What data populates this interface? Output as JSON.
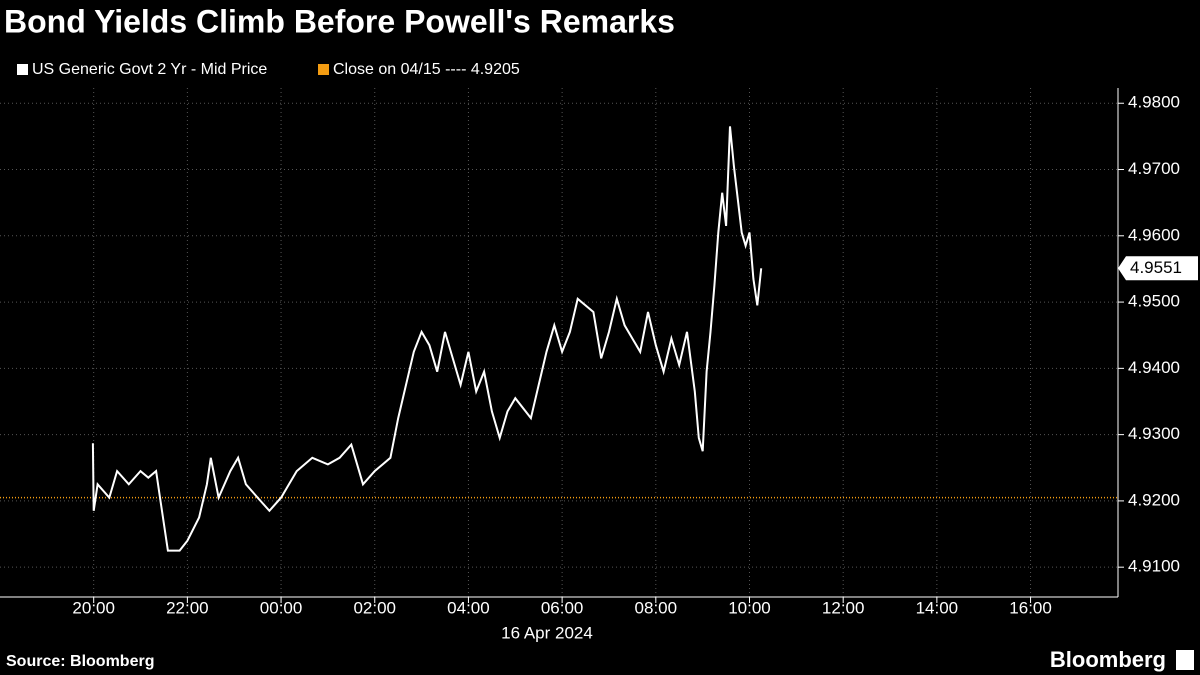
{
  "chart_data": {
    "type": "line",
    "title": "Bond Yields Climb Before Powell's Remarks",
    "series": [
      {
        "name": "US Generic Govt 2 Yr - Mid Price",
        "color": "#ffffff",
        "x": [
          "19:59",
          "20:00",
          "20:05",
          "20:20",
          "20:30",
          "20:45",
          "21:00",
          "21:10",
          "21:20",
          "21:25",
          "21:35",
          "21:50",
          "22:00",
          "22:15",
          "22:25",
          "22:30",
          "22:40",
          "22:55",
          "23:05",
          "23:15",
          "23:30",
          "23:45",
          "00:00",
          "00:20",
          "00:40",
          "01:00",
          "01:15",
          "01:30",
          "01:45",
          "02:00",
          "02:20",
          "02:30",
          "02:40",
          "02:50",
          "03:00",
          "03:10",
          "03:20",
          "03:30",
          "03:40",
          "03:50",
          "04:00",
          "04:10",
          "04:20",
          "04:30",
          "04:40",
          "04:50",
          "05:00",
          "05:20",
          "05:30",
          "05:40",
          "05:50",
          "06:00",
          "06:10",
          "06:20",
          "06:40",
          "06:50",
          "07:00",
          "07:10",
          "07:20",
          "07:40",
          "07:50",
          "08:00",
          "08:10",
          "08:20",
          "08:30",
          "08:40",
          "08:50",
          "08:55",
          "09:00",
          "09:05",
          "09:10",
          "09:15",
          "09:20",
          "09:25",
          "09:30",
          "09:35",
          "09:40",
          "09:45",
          "09:50",
          "09:55",
          "10:00",
          "10:05",
          "10:10",
          "10:15"
        ],
        "values": [
          4.9287,
          4.9185,
          4.9225,
          4.9205,
          4.9245,
          4.9225,
          4.9245,
          4.9235,
          4.9245,
          4.9205,
          4.9125,
          4.9125,
          4.914,
          4.9175,
          4.9225,
          4.9265,
          4.9205,
          4.9245,
          4.9265,
          4.9225,
          4.9205,
          4.9185,
          4.9205,
          4.9245,
          4.9265,
          4.9255,
          4.9265,
          4.9285,
          4.9225,
          4.9245,
          4.9265,
          4.9325,
          4.9375,
          4.9425,
          4.9455,
          4.9435,
          4.9395,
          4.9455,
          4.9415,
          4.9375,
          4.9425,
          4.9365,
          4.9395,
          4.9335,
          4.9295,
          4.9335,
          4.9355,
          4.9325,
          4.9375,
          4.9425,
          4.9465,
          4.9425,
          4.9455,
          4.9505,
          4.9485,
          4.9415,
          4.9455,
          4.9505,
          4.9465,
          4.9425,
          4.9485,
          4.9435,
          4.9395,
          4.9445,
          4.9405,
          4.9455,
          4.9365,
          4.9295,
          4.9275,
          4.9395,
          4.9455,
          4.9525,
          4.9605,
          4.9665,
          4.9615,
          4.9765,
          4.9705,
          4.9655,
          4.9605,
          4.9585,
          4.9605,
          4.9535,
          4.9495,
          4.9551
        ]
      }
    ],
    "reference_line": {
      "name": "Close on 04/15 ---- 4.9205",
      "value": 4.9205,
      "color": "#f39c12"
    },
    "xlim": [
      "18:00",
      "17:52"
    ],
    "xticks": [
      "20:00",
      "22:00",
      "00:00",
      "02:00",
      "04:00",
      "06:00",
      "08:00",
      "10:00",
      "12:00",
      "14:00",
      "16:00"
    ],
    "date_label": "16 Apr 2024",
    "ylim": [
      4.9055,
      4.9823
    ],
    "yticks": [
      {
        "value": 4.91,
        "label": "4.9100"
      },
      {
        "value": 4.92,
        "label": "4.9200"
      },
      {
        "value": 4.93,
        "label": "4.9300"
      },
      {
        "value": 4.94,
        "label": "4.9400"
      },
      {
        "value": 4.95,
        "label": "4.9500"
      },
      {
        "value": 4.96,
        "label": "4.9600"
      },
      {
        "value": 4.97,
        "label": "4.9700"
      },
      {
        "value": 4.98,
        "label": "4.9800"
      }
    ],
    "grid": true,
    "source": "Source: Bloomberg",
    "brand": "Bloomberg"
  }
}
